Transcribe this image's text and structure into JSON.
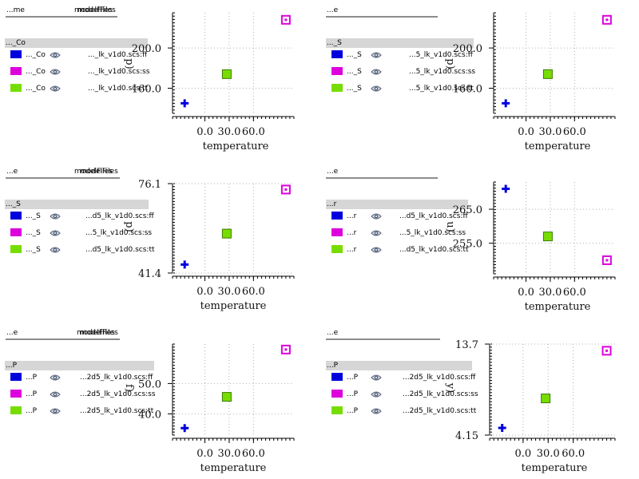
{
  "colors": {
    "ff": "#0000dd",
    "ss": "#dd00dd",
    "tt": "#77dd00"
  },
  "panels": [
    {
      "header": {
        "col1": "...me",
        "col2": "modelFiles"
      },
      "group": "..._Co",
      "rows": [
        {
          "name": "..._Co",
          "model": "..._lk_v1d0.scs:ff",
          "corner": "ff"
        },
        {
          "name": "..._Co",
          "model": "..._lk_v1d0.scs:ss",
          "corner": "ss"
        },
        {
          "name": "..._Co",
          "model": "..._lk_v1d0.scs:tt",
          "corner": "tt"
        }
      ]
    },
    {
      "header": {
        "col1": "...e",
        "col2": "modelFiles"
      },
      "group": "..._S",
      "rows": [
        {
          "name": "..._S",
          "model": "...5_lk_v1d0.scs:ff",
          "corner": "ff"
        },
        {
          "name": "..._S",
          "model": "...5_lk_v1d0.scs:ss",
          "corner": "ss"
        },
        {
          "name": "..._S",
          "model": "...5_lk_v1d0.scs:tt",
          "corner": "tt"
        }
      ]
    },
    {
      "header": {
        "col1": "...e",
        "col2": "modelFiles"
      },
      "group": "..._S",
      "rows": [
        {
          "name": "..._S",
          "model": "...d5_lk_v1d0.scs:ff",
          "corner": "ff"
        },
        {
          "name": "..._S",
          "model": "...5_lk_v1d0.scs:ss",
          "corner": "ss"
        },
        {
          "name": "..._S",
          "model": "...d5_lk_v1d0.scs:tt",
          "corner": "tt"
        }
      ]
    },
    {
      "header": {
        "col1": "...e",
        "col2": "modelFiles"
      },
      "group": "...r",
      "rows": [
        {
          "name": "...r",
          "model": "...d5_lk_v1d0.scs:ff",
          "corner": "ff"
        },
        {
          "name": "...r",
          "model": "...5_lk_v1d0.scs:ss",
          "corner": "ss"
        },
        {
          "name": "...r",
          "model": "...d5_lk_v1d0.scs:tt",
          "corner": "tt"
        }
      ]
    },
    {
      "header": {
        "col1": "...e",
        "col2": "modelFiles"
      },
      "group": "...P",
      "rows": [
        {
          "name": "...P",
          "model": "...2d5_lk_v1d0.scs:ff",
          "corner": "ff"
        },
        {
          "name": "...P",
          "model": "...2d5_lk_v1d0.scs:ss",
          "corner": "ss"
        },
        {
          "name": "...P",
          "model": "...2d5_lk_v1d0.scs:tt",
          "corner": "tt"
        }
      ]
    },
    {
      "header": {
        "col1": "...e",
        "col2": "modelFiles"
      },
      "group": "...P",
      "rows": [
        {
          "name": "...P",
          "model": "...2d5_lk_v1d0.scs:ff",
          "corner": "ff"
        },
        {
          "name": "...P",
          "model": "...2d5_lk_v1d0.scs:ss",
          "corner": "ss"
        },
        {
          "name": "...P",
          "model": "...2d5_lk_v1d0.scs:tt",
          "corner": "tt"
        }
      ]
    }
  ],
  "chart_data": [
    {
      "type": "scatter",
      "xlabel": "temperature",
      "ylabel": "p)",
      "xlim": [
        -40,
        110
      ],
      "ylim": [
        135,
        235
      ],
      "xticks": [
        "0.0",
        "30.0",
        "60.0"
      ],
      "yticks": [
        "160.0",
        "200.0"
      ],
      "series": [
        {
          "corner": "ff",
          "x": [
            -25
          ],
          "y": [
            145
          ]
        },
        {
          "corner": "ss",
          "x": [
            100
          ],
          "y": [
            228
          ]
        },
        {
          "corner": "tt",
          "x": [
            27
          ],
          "y": [
            174
          ]
        }
      ]
    },
    {
      "type": "scatter",
      "xlabel": "temperature",
      "ylabel": "p)",
      "xlim": [
        -40,
        110
      ],
      "ylim": [
        135,
        235
      ],
      "xticks": [
        "0.0",
        "30.0",
        "60.0"
      ],
      "yticks": [
        "160.0",
        "200.0"
      ],
      "series": [
        {
          "corner": "ff",
          "x": [
            -25
          ],
          "y": [
            145
          ]
        },
        {
          "corner": "ss",
          "x": [
            100
          ],
          "y": [
            228
          ]
        },
        {
          "corner": "tt",
          "x": [
            27
          ],
          "y": [
            174
          ]
        }
      ]
    },
    {
      "type": "scatter",
      "xlabel": "temperature",
      "ylabel": "p)",
      "xlim": [
        -40,
        110
      ],
      "ylim": [
        41.4,
        76.1
      ],
      "xticks": [
        "0.0",
        "30.0",
        "60.0"
      ],
      "yticks": [
        "41.4",
        "76.1"
      ],
      "series": [
        {
          "corner": "ff",
          "x": [
            -25
          ],
          "y": [
            44.7
          ]
        },
        {
          "corner": "ss",
          "x": [
            100
          ],
          "y": [
            73.8
          ]
        },
        {
          "corner": "tt",
          "x": [
            27
          ],
          "y": [
            56.7
          ]
        }
      ]
    },
    {
      "type": "scatter",
      "xlabel": "temperature",
      "ylabel": "u)",
      "xlim": [
        -40,
        110
      ],
      "ylim": [
        246,
        273
      ],
      "xticks": [
        "0.0",
        "30.0",
        "60.0"
      ],
      "yticks": [
        "255.0",
        "265.0"
      ],
      "series": [
        {
          "corner": "ff",
          "x": [
            -25
          ],
          "y": [
            271
          ]
        },
        {
          "corner": "ss",
          "x": [
            100
          ],
          "y": [
            250
          ]
        },
        {
          "corner": "tt",
          "x": [
            27
          ],
          "y": [
            257
          ]
        }
      ]
    },
    {
      "type": "scatter",
      "xlabel": "temperature",
      "ylabel": "f)",
      "xlim": [
        -40,
        110
      ],
      "ylim": [
        33,
        63
      ],
      "xticks": [
        "0.0",
        "30.0",
        "60.0"
      ],
      "yticks": [
        "40.0",
        "50.0"
      ],
      "series": [
        {
          "corner": "ff",
          "x": [
            -25
          ],
          "y": [
            35.3
          ]
        },
        {
          "corner": "ss",
          "x": [
            100
          ],
          "y": [
            61.2
          ]
        },
        {
          "corner": "tt",
          "x": [
            27
          ],
          "y": [
            45.6
          ]
        }
      ]
    },
    {
      "type": "scatter",
      "xlabel": "temperature",
      "ylabel": "y)",
      "xlim": [
        -40,
        110
      ],
      "ylim": [
        4.15,
        13.7
      ],
      "xticks": [
        "0.0",
        "30.0",
        "60.0"
      ],
      "yticks": [
        "4.15",
        "13.7"
      ],
      "series": [
        {
          "corner": "ff",
          "x": [
            -25
          ],
          "y": [
            4.9
          ]
        },
        {
          "corner": "ss",
          "x": [
            100
          ],
          "y": [
            13.0
          ]
        },
        {
          "corner": "tt",
          "x": [
            27
          ],
          "y": [
            8.0
          ]
        }
      ]
    }
  ]
}
